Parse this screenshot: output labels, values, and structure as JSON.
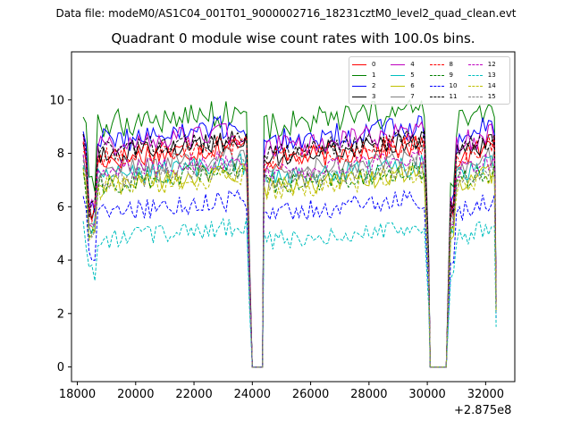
{
  "header": {
    "suptitle": "Data file: modeM0/AS1C04_001T01_9000002716_18231cztM0_level2_quad_clean.evt"
  },
  "chart_data": {
    "type": "line",
    "title": "Quadrant 0 module wise count rates with 100.0s bins.",
    "xlabel": "",
    "ylabel": "",
    "x_offset_label": "+2.875e8",
    "xlim": [
      17800,
      33000
    ],
    "ylim": [
      -0.55,
      11.8
    ],
    "xticks": [
      18000,
      20000,
      22000,
      24000,
      26000,
      28000,
      30000,
      32000
    ],
    "xtick_labels": [
      "18000",
      "20000",
      "22000",
      "24000",
      "26000",
      "28000",
      "30000",
      "32000"
    ],
    "yticks": [
      0,
      2,
      4,
      6,
      8,
      10
    ],
    "ytick_labels": [
      "0",
      "2",
      "4",
      "6",
      "8",
      "10"
    ],
    "bin_seconds": 100,
    "segments": [
      {
        "start": 18200,
        "end": 23800,
        "dip_at": 18500
      },
      {
        "start": 24400,
        "end": 29950
      },
      {
        "start": 30800,
        "end": 32300,
        "dip_at": 30800
      }
    ],
    "gaps": [
      {
        "drop": 23800,
        "start": 24000,
        "end": 24350
      },
      {
        "drop": 29950,
        "start": 30100,
        "end": 30650
      }
    ],
    "series": [
      {
        "name": "0",
        "color": "#ff0000",
        "dash": "solid",
        "level": 8.0,
        "amp": 0.45
      },
      {
        "name": "1",
        "color": "#008000",
        "dash": "solid",
        "level": 9.3,
        "amp": 0.55
      },
      {
        "name": "2",
        "color": "#0000ff",
        "dash": "solid",
        "level": 8.7,
        "amp": 0.5
      },
      {
        "name": "3",
        "color": "#000000",
        "dash": "solid",
        "level": 8.2,
        "amp": 0.4
      },
      {
        "name": "4",
        "color": "#bf00bf",
        "dash": "solid",
        "level": 8.5,
        "amp": 0.45
      },
      {
        "name": "5",
        "color": "#00bfbf",
        "dash": "solid",
        "level": 7.3,
        "amp": 0.4
      },
      {
        "name": "6",
        "color": "#bfbf00",
        "dash": "solid",
        "level": 7.0,
        "amp": 0.4
      },
      {
        "name": "7",
        "color": "#808080",
        "dash": "solid",
        "level": 7.6,
        "amp": 0.4
      },
      {
        "name": "8",
        "color": "#ff0000",
        "dash": "dashed",
        "level": 8.1,
        "amp": 0.4
      },
      {
        "name": "9",
        "color": "#008000",
        "dash": "dashed",
        "level": 7.1,
        "amp": 0.4
      },
      {
        "name": "10",
        "color": "#0000ff",
        "dash": "dashed",
        "level": 6.0,
        "amp": 0.4
      },
      {
        "name": "11",
        "color": "#000000",
        "dash": "dashed",
        "level": 8.3,
        "amp": 0.4
      },
      {
        "name": "12",
        "color": "#bf00bf",
        "dash": "dashed",
        "level": 7.5,
        "amp": 0.4
      },
      {
        "name": "13",
        "color": "#00bfbf",
        "dash": "dashed",
        "level": 5.0,
        "amp": 0.35
      },
      {
        "name": "14",
        "color": "#bfbf00",
        "dash": "dashed",
        "level": 6.9,
        "amp": 0.4
      },
      {
        "name": "15",
        "color": "#808080",
        "dash": "dashed",
        "level": 7.2,
        "amp": 0.4
      }
    ]
  }
}
